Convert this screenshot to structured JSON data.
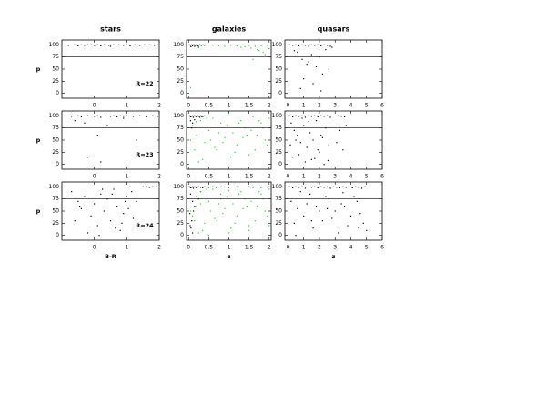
{
  "chart_data": [
    {
      "type": "scatter",
      "title": "stars",
      "ylabel": "p",
      "annotation": "R=22",
      "threshold": 75,
      "xlim": [
        -1,
        2
      ],
      "xticks": [
        0,
        1,
        2
      ],
      "ylim": [
        -10,
        110
      ],
      "yticks": [
        0,
        25,
        50,
        75,
        100
      ],
      "series": [
        {
          "color": "#000000",
          "x": [
            -0.8,
            -0.6,
            -0.5,
            -0.4,
            -0.3,
            -0.2,
            -0.1,
            0.0,
            0.1,
            0.2,
            0.3,
            0.45,
            0.6,
            0.75,
            0.9,
            1.0,
            1.1,
            1.25,
            1.4,
            1.55,
            1.7,
            1.85,
            1.95,
            0.05,
            0.5
          ],
          "y": [
            99,
            100,
            98,
            100,
            99,
            100,
            100,
            99,
            100,
            98,
            100,
            99,
            100,
            100,
            99,
            100,
            98,
            100,
            99,
            100,
            100,
            99,
            100,
            97,
            97
          ]
        }
      ]
    },
    {
      "type": "scatter",
      "title": "galaxies",
      "threshold": 75,
      "xlim": [
        -0.05,
        2.05
      ],
      "xticks": [
        0,
        0.5,
        1,
        1.5,
        2
      ],
      "ylim": [
        -10,
        110
      ],
      "yticks": [
        0,
        25,
        50,
        75,
        100
      ],
      "series": [
        {
          "color": "#000000",
          "x": [
            0.02,
            0.05,
            0.08,
            0.1,
            0.13,
            0.17,
            0.2,
            0.24,
            0.28,
            0.32,
            0.36,
            0.4,
            0.06,
            0.15,
            0.25
          ],
          "y": [
            100,
            99,
            100,
            98,
            100,
            99,
            100,
            98,
            100,
            99,
            100,
            99,
            96,
            97,
            95
          ]
        },
        {
          "color": "#22dd22",
          "x": [
            0.3,
            0.45,
            0.6,
            0.75,
            0.9,
            1.05,
            1.2,
            1.35,
            1.5,
            1.65,
            1.8,
            1.95,
            1.55,
            1.7,
            1.85,
            1.9,
            1.75,
            2.0,
            1.6,
            1.4,
            0.05,
            0.9,
            1.3
          ],
          "y": [
            99,
            100,
            99,
            98,
            100,
            99,
            98,
            100,
            99,
            97,
            98,
            99,
            93,
            90,
            85,
            80,
            88,
            92,
            70,
            96,
            12,
            97,
            95
          ]
        }
      ]
    },
    {
      "type": "scatter",
      "title": "quasars",
      "threshold": 75,
      "xlim": [
        -0.2,
        6
      ],
      "xticks": [
        0,
        1,
        2,
        3,
        4,
        5,
        6
      ],
      "ylim": [
        -10,
        110
      ],
      "yticks": [
        0,
        25,
        50,
        75,
        100
      ],
      "series": [
        {
          "color": "#000000",
          "x": [
            0.1,
            0.3,
            0.5,
            0.7,
            0.9,
            1.1,
            1.3,
            1.5,
            1.7,
            1.9,
            2.1,
            2.3,
            2.5,
            2.7,
            0.6,
            0.9,
            1.2,
            1.5,
            1.8,
            2.0,
            2.2,
            2.4,
            1.0,
            1.6,
            2.6,
            0.8,
            1.3,
            2.1,
            0.4,
            2.8
          ],
          "y": [
            100,
            99,
            100,
            98,
            100,
            99,
            97,
            100,
            99,
            100,
            98,
            100,
            99,
            97,
            85,
            70,
            60,
            80,
            55,
            75,
            40,
            90,
            30,
            20,
            50,
            10,
            65,
            5,
            88,
            95
          ]
        }
      ]
    },
    {
      "type": "scatter",
      "ylabel": "p",
      "annotation": "R=23",
      "threshold": 75,
      "xlim": [
        -1,
        2
      ],
      "xticks": [
        0,
        1,
        2
      ],
      "ylim": [
        -10,
        110
      ],
      "yticks": [
        0,
        25,
        50,
        75,
        100
      ],
      "series": [
        {
          "color": "#000000",
          "x": [
            -0.7,
            -0.5,
            -0.4,
            -0.2,
            0.0,
            0.1,
            0.2,
            0.35,
            0.5,
            0.6,
            0.7,
            0.8,
            0.9,
            1.0,
            1.2,
            1.4,
            1.6,
            1.8,
            1.95,
            -0.3,
            0.1,
            -0.2,
            0.2,
            1.3,
            0.4,
            -0.6,
            0.9
          ],
          "y": [
            99,
            100,
            98,
            100,
            99,
            100,
            97,
            100,
            99,
            100,
            98,
            100,
            99,
            100,
            99,
            100,
            98,
            100,
            99,
            85,
            60,
            15,
            5,
            50,
            80,
            90,
            95
          ]
        }
      ]
    },
    {
      "type": "scatter",
      "threshold": 75,
      "xlim": [
        -0.05,
        2.05
      ],
      "xticks": [
        0,
        0.5,
        1,
        1.5,
        2
      ],
      "ylim": [
        -10,
        110
      ],
      "yticks": [
        0,
        25,
        50,
        75,
        100
      ],
      "series": [
        {
          "color": "#000000",
          "x": [
            0.02,
            0.05,
            0.08,
            0.1,
            0.12,
            0.15,
            0.18,
            0.2,
            0.22,
            0.25,
            0.28,
            0.3,
            0.33,
            0.36,
            0.4,
            0.05,
            0.1,
            0.15,
            0.08,
            0.2
          ],
          "y": [
            100,
            98,
            99,
            100,
            97,
            100,
            99,
            98,
            100,
            99,
            97,
            100,
            98,
            99,
            100,
            90,
            85,
            92,
            75,
            88
          ]
        },
        {
          "color": "#22dd22",
          "x": [
            0.1,
            0.2,
            0.3,
            0.4,
            0.5,
            0.6,
            0.7,
            0.8,
            0.9,
            1.0,
            1.1,
            1.2,
            1.3,
            1.4,
            1.5,
            1.6,
            1.7,
            1.8,
            1.9,
            2.0,
            0.15,
            0.35,
            0.55,
            0.75,
            0.95,
            1.15,
            1.35,
            1.55,
            1.75,
            1.95,
            0.25,
            0.65,
            1.05,
            1.45,
            1.85,
            0.45,
            0.85,
            1.25,
            1.65,
            0.05
          ],
          "y": [
            80,
            60,
            90,
            45,
            70,
            95,
            30,
            85,
            55,
            100,
            65,
            40,
            90,
            75,
            20,
            98,
            60,
            85,
            50,
            95,
            30,
            10,
            50,
            65,
            80,
            25,
            55,
            70,
            90,
            40,
            5,
            35,
            15,
            60,
            75,
            95,
            45,
            85,
            30,
            50
          ]
        }
      ]
    },
    {
      "type": "scatter",
      "threshold": 75,
      "xlim": [
        -0.2,
        6
      ],
      "xticks": [
        0,
        1,
        2,
        3,
        4,
        5,
        6
      ],
      "ylim": [
        -10,
        110
      ],
      "yticks": [
        0,
        25,
        50,
        75,
        100
      ],
      "series": [
        {
          "color": "#000000",
          "x": [
            0.1,
            0.3,
            0.5,
            0.7,
            0.9,
            1.1,
            1.3,
            1.5,
            1.7,
            1.9,
            2.1,
            2.3,
            2.5,
            2.7,
            3.2,
            3.4,
            3.6,
            0.2,
            0.4,
            0.6,
            0.8,
            1.0,
            1.2,
            1.4,
            1.6,
            1.8,
            2.0,
            2.2,
            2.4,
            2.6,
            3.3,
            3.5,
            0.3,
            0.7,
            1.1,
            1.5,
            1.9,
            2.3,
            0.5,
            1.3,
            2.1,
            0.9,
            1.7,
            3.1,
            3.7,
            0.15,
            2.55
          ],
          "y": [
            100,
            98,
            100,
            99,
            100,
            97,
            100,
            99,
            100,
            98,
            100,
            99,
            100,
            97,
            100,
            99,
            98,
            85,
            70,
            60,
            45,
            80,
            35,
            65,
            50,
            90,
            25,
            55,
            75,
            40,
            70,
            30,
            15,
            20,
            5,
            10,
            30,
            0,
            50,
            88,
            60,
            95,
            12,
            45,
            80,
            40,
            8
          ]
        }
      ]
    },
    {
      "type": "scatter",
      "ylabel": "p",
      "xlabel": "B-R",
      "annotation": "R=24",
      "threshold": 75,
      "xlim": [
        -1,
        2
      ],
      "xticks": [
        0,
        1,
        2
      ],
      "ylim": [
        -10,
        110
      ],
      "yticks": [
        0,
        25,
        50,
        75,
        100
      ],
      "series": [
        {
          "color": "#000000",
          "x": [
            -0.7,
            -0.5,
            -0.4,
            -0.3,
            -0.1,
            0.0,
            0.1,
            0.2,
            0.3,
            0.4,
            0.5,
            0.6,
            0.7,
            0.8,
            0.9,
            1.0,
            1.1,
            1.2,
            1.3,
            1.5,
            1.6,
            1.7,
            1.8,
            1.9,
            -0.6,
            -0.2,
            0.25,
            0.55,
            0.85,
            1.05,
            0.15,
            0.65,
            -0.45,
            0.95,
            1.15
          ],
          "y": [
            90,
            70,
            55,
            80,
            40,
            65,
            20,
            85,
            50,
            75,
            30,
            95,
            60,
            10,
            45,
            80,
            100,
            35,
            70,
            100,
            100,
            99,
            100,
            100,
            30,
            5,
            95,
            85,
            25,
            55,
            0,
            15,
            60,
            70,
            90
          ]
        }
      ]
    },
    {
      "type": "scatter",
      "xlabel": "z",
      "threshold": 75,
      "xlim": [
        -0.05,
        2.05
      ],
      "xticks": [
        0,
        0.5,
        1,
        1.5,
        2
      ],
      "ylim": [
        -10,
        110
      ],
      "yticks": [
        0,
        25,
        50,
        75,
        100
      ],
      "series": [
        {
          "color": "#000000",
          "x": [
            0.02,
            0.05,
            0.08,
            0.1,
            0.12,
            0.15,
            0.18,
            0.2,
            0.25,
            0.3,
            0.35,
            0.4,
            0.5,
            0.6,
            0.7,
            0.8,
            1.0,
            1.2,
            1.5,
            1.8,
            2.0,
            0.05,
            0.1,
            0.15,
            0.03,
            0.08,
            0.12,
            0.2,
            0.06,
            0.1,
            0.04,
            0.3,
            0.25,
            0.45
          ],
          "y": [
            100,
            98,
            99,
            100,
            97,
            100,
            99,
            98,
            100,
            99,
            98,
            100,
            99,
            100,
            98,
            100,
            99,
            100,
            100,
            99,
            100,
            85,
            70,
            60,
            45,
            30,
            50,
            80,
            15,
            5,
            20,
            90,
            75,
            95
          ]
        },
        {
          "color": "#22dd22",
          "x": [
            0.1,
            0.2,
            0.3,
            0.4,
            0.5,
            0.6,
            0.7,
            0.8,
            0.9,
            1.0,
            1.1,
            1.2,
            1.3,
            1.4,
            1.5,
            1.6,
            1.7,
            1.8,
            1.9,
            2.0,
            0.15,
            0.35,
            0.55,
            0.75,
            0.95,
            1.15,
            1.35,
            1.55,
            1.75,
            1.95,
            0.25,
            0.65,
            1.05,
            1.45,
            1.85,
            0.45,
            0.85,
            1.25,
            1.65,
            0.05,
            0.5,
            1.0,
            1.5,
            2.0,
            0.3,
            0.8
          ],
          "y": [
            40,
            60,
            90,
            25,
            70,
            95,
            30,
            85,
            55,
            92,
            65,
            40,
            90,
            75,
            20,
            98,
            60,
            85,
            50,
            95,
            30,
            10,
            50,
            65,
            80,
            25,
            55,
            70,
            90,
            40,
            5,
            35,
            15,
            60,
            75,
            95,
            45,
            85,
            30,
            50,
            0,
            5,
            10,
            20,
            65,
            75
          ]
        }
      ]
    },
    {
      "type": "scatter",
      "xlabel": "z",
      "threshold": 75,
      "xlim": [
        -0.2,
        6
      ],
      "xticks": [
        0,
        1,
        2,
        3,
        4,
        5,
        6
      ],
      "ylim": [
        -10,
        110
      ],
      "yticks": [
        0,
        25,
        50,
        75,
        100
      ],
      "series": [
        {
          "color": "#000000",
          "x": [
            0.1,
            0.3,
            0.5,
            0.7,
            0.9,
            1.1,
            1.3,
            1.5,
            1.7,
            1.9,
            2.1,
            2.3,
            2.5,
            2.7,
            2.9,
            3.1,
            3.3,
            3.5,
            3.7,
            3.9,
            4.1,
            4.3,
            4.5,
            4.7,
            4.9,
            0.2,
            0.6,
            1.0,
            1.4,
            1.8,
            2.2,
            2.6,
            3.0,
            3.4,
            3.8,
            4.2,
            4.6,
            5.0,
            0.4,
            0.8,
            1.2,
            1.6,
            2.0,
            2.4,
            2.8,
            3.2,
            3.6,
            4.0,
            4.4,
            4.8,
            0.5,
            1.5,
            2.5,
            3.5,
            4.5
          ],
          "y": [
            100,
            98,
            100,
            99,
            100,
            97,
            100,
            99,
            100,
            98,
            100,
            99,
            100,
            97,
            100,
            99,
            98,
            100,
            99,
            100,
            98,
            100,
            99,
            97,
            100,
            70,
            55,
            40,
            85,
            60,
            30,
            75,
            50,
            65,
            20,
            80,
            45,
            10,
            25,
            90,
            65,
            15,
            50,
            80,
            35,
            5,
            60,
            40,
            70,
            25,
            0,
            30,
            55,
            88,
            15
          ]
        }
      ]
    }
  ]
}
